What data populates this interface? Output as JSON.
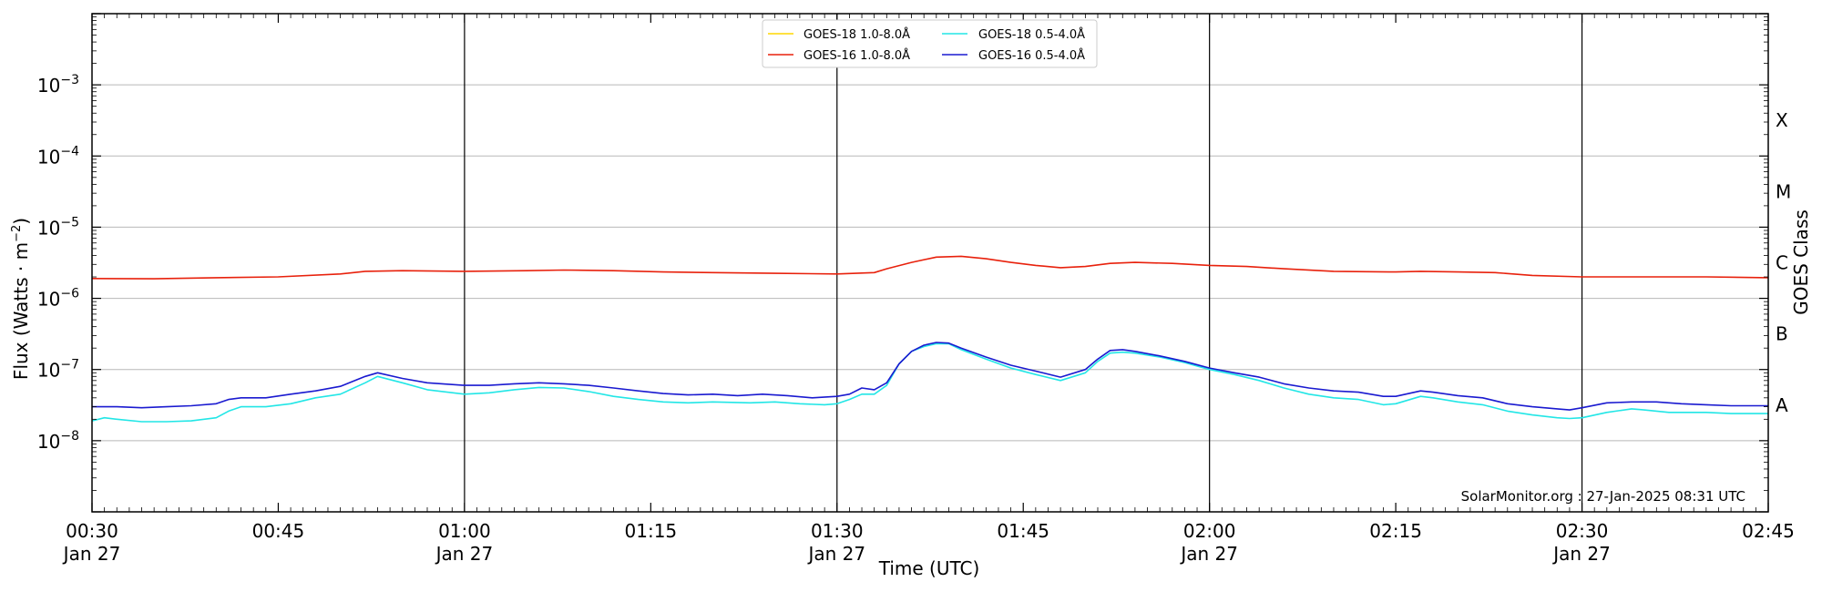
{
  "chart_data": {
    "type": "line",
    "xlabel": "Time (UTC)",
    "ylabel": "Flux (Watts · m",
    "ylabel_exp": "−2",
    "ylabel_close": ")",
    "right_label": "GOES Class",
    "watermark": "SolarMonitor.org : 27-Jan-2025 08:31 UTC",
    "x_range_min": [
      30,
      165
    ],
    "y_log_range": [
      -9,
      -2
    ],
    "grid": "horizontal",
    "legend_position": "top-center",
    "x_ticks": [
      {
        "t": 30,
        "time": "00:30",
        "date": "Jan 27"
      },
      {
        "t": 45,
        "time": "00:45",
        "date": ""
      },
      {
        "t": 60,
        "time": "01:00",
        "date": "Jan 27"
      },
      {
        "t": 75,
        "time": "01:15",
        "date": ""
      },
      {
        "t": 90,
        "time": "01:30",
        "date": "Jan 27"
      },
      {
        "t": 105,
        "time": "01:45",
        "date": ""
      },
      {
        "t": 120,
        "time": "02:00",
        "date": "Jan 27"
      },
      {
        "t": 135,
        "time": "02:15",
        "date": ""
      },
      {
        "t": 150,
        "time": "02:30",
        "date": "Jan 27"
      },
      {
        "t": 165,
        "time": "02:45",
        "date": ""
      }
    ],
    "y_ticks": [
      {
        "exp": -3,
        "base": "10",
        "sup": "−3"
      },
      {
        "exp": -4,
        "base": "10",
        "sup": "−4"
      },
      {
        "exp": -5,
        "base": "10",
        "sup": "−5"
      },
      {
        "exp": -6,
        "base": "10",
        "sup": "−6"
      },
      {
        "exp": -7,
        "base": "10",
        "sup": "−7"
      },
      {
        "exp": -8,
        "base": "10",
        "sup": "−8"
      }
    ],
    "goes_classes": [
      {
        "label": "X",
        "exp": -3.5
      },
      {
        "label": "M",
        "exp": -4.5
      },
      {
        "label": "C",
        "exp": -5.5
      },
      {
        "label": "B",
        "exp": -6.5
      },
      {
        "label": "A",
        "exp": -7.5
      }
    ],
    "vertical_lines": [
      60,
      90,
      120,
      150
    ],
    "series": [
      {
        "name": "GOES-18 1.0-8.0Å",
        "color": "#ffd700",
        "data": []
      },
      {
        "name": "GOES-16 1.0-8.0Å",
        "color": "#e8210c",
        "data": [
          [
            30,
            1.9e-06
          ],
          [
            35,
            1.88e-06
          ],
          [
            40,
            1.95e-06
          ],
          [
            45,
            2e-06
          ],
          [
            50,
            2.2e-06
          ],
          [
            52,
            2.4e-06
          ],
          [
            55,
            2.45e-06
          ],
          [
            60,
            2.4e-06
          ],
          [
            65,
            2.45e-06
          ],
          [
            68,
            2.5e-06
          ],
          [
            72,
            2.45e-06
          ],
          [
            76,
            2.35e-06
          ],
          [
            80,
            2.3e-06
          ],
          [
            85,
            2.25e-06
          ],
          [
            90,
            2.2e-06
          ],
          [
            93,
            2.3e-06
          ],
          [
            94,
            2.6e-06
          ],
          [
            96,
            3.2e-06
          ],
          [
            98,
            3.8e-06
          ],
          [
            100,
            3.9e-06
          ],
          [
            102,
            3.6e-06
          ],
          [
            104,
            3.2e-06
          ],
          [
            106,
            2.9e-06
          ],
          [
            108,
            2.7e-06
          ],
          [
            110,
            2.8e-06
          ],
          [
            112,
            3.1e-06
          ],
          [
            114,
            3.2e-06
          ],
          [
            117,
            3.1e-06
          ],
          [
            120,
            2.9e-06
          ],
          [
            123,
            2.8e-06
          ],
          [
            126,
            2.6e-06
          ],
          [
            130,
            2.4e-06
          ],
          [
            135,
            2.35e-06
          ],
          [
            137,
            2.4e-06
          ],
          [
            140,
            2.35e-06
          ],
          [
            143,
            2.3e-06
          ],
          [
            146,
            2.1e-06
          ],
          [
            150,
            2e-06
          ],
          [
            155,
            2e-06
          ],
          [
            160,
            2e-06
          ],
          [
            165,
            1.95e-06
          ]
        ]
      },
      {
        "name": "GOES-18 0.5-4.0Å",
        "color": "#22e6e6",
        "data": [
          [
            30,
            1.9e-08
          ],
          [
            31,
            2.1e-08
          ],
          [
            32,
            2e-08
          ],
          [
            34,
            1.85e-08
          ],
          [
            36,
            1.85e-08
          ],
          [
            38,
            1.9e-08
          ],
          [
            40,
            2.1e-08
          ],
          [
            41,
            2.6e-08
          ],
          [
            42,
            3e-08
          ],
          [
            44,
            3e-08
          ],
          [
            46,
            3.3e-08
          ],
          [
            48,
            4e-08
          ],
          [
            50,
            4.5e-08
          ],
          [
            52,
            6.5e-08
          ],
          [
            53,
            8e-08
          ],
          [
            55,
            6.5e-08
          ],
          [
            57,
            5.2e-08
          ],
          [
            60,
            4.5e-08
          ],
          [
            62,
            4.7e-08
          ],
          [
            64,
            5.2e-08
          ],
          [
            66,
            5.6e-08
          ],
          [
            68,
            5.5e-08
          ],
          [
            70,
            4.9e-08
          ],
          [
            72,
            4.2e-08
          ],
          [
            74,
            3.8e-08
          ],
          [
            76,
            3.5e-08
          ],
          [
            78,
            3.4e-08
          ],
          [
            80,
            3.5e-08
          ],
          [
            83,
            3.4e-08
          ],
          [
            85,
            3.5e-08
          ],
          [
            87,
            3.3e-08
          ],
          [
            89,
            3.2e-08
          ],
          [
            90,
            3.3e-08
          ],
          [
            91,
            3.8e-08
          ],
          [
            92,
            4.5e-08
          ],
          [
            93,
            4.5e-08
          ],
          [
            94,
            6e-08
          ],
          [
            95,
            1.2e-07
          ],
          [
            96,
            1.8e-07
          ],
          [
            97,
            2.1e-07
          ],
          [
            98,
            2.3e-07
          ],
          [
            99,
            2.3e-07
          ],
          [
            100,
            1.9e-07
          ],
          [
            102,
            1.4e-07
          ],
          [
            104,
            1.05e-07
          ],
          [
            106,
            8.5e-08
          ],
          [
            108,
            7e-08
          ],
          [
            110,
            9e-08
          ],
          [
            111,
            1.3e-07
          ],
          [
            112,
            1.7e-07
          ],
          [
            113,
            1.75e-07
          ],
          [
            114,
            1.7e-07
          ],
          [
            116,
            1.5e-07
          ],
          [
            118,
            1.25e-07
          ],
          [
            120,
            1e-07
          ],
          [
            122,
            8.5e-08
          ],
          [
            124,
            7e-08
          ],
          [
            126,
            5.5e-08
          ],
          [
            128,
            4.5e-08
          ],
          [
            130,
            4e-08
          ],
          [
            132,
            3.8e-08
          ],
          [
            134,
            3.2e-08
          ],
          [
            135,
            3.3e-08
          ],
          [
            137,
            4.2e-08
          ],
          [
            138,
            4e-08
          ],
          [
            140,
            3.5e-08
          ],
          [
            142,
            3.2e-08
          ],
          [
            144,
            2.6e-08
          ],
          [
            146,
            2.3e-08
          ],
          [
            148,
            2.1e-08
          ],
          [
            149,
            2.05e-08
          ],
          [
            150,
            2.1e-08
          ],
          [
            152,
            2.5e-08
          ],
          [
            154,
            2.8e-08
          ],
          [
            155,
            2.7e-08
          ],
          [
            157,
            2.5e-08
          ],
          [
            160,
            2.5e-08
          ],
          [
            162,
            2.4e-08
          ],
          [
            165,
            2.4e-08
          ]
        ]
      },
      {
        "name": "GOES-16 0.5-4.0Å",
        "color": "#1a1ad0",
        "data": [
          [
            30,
            3e-08
          ],
          [
            32,
            3e-08
          ],
          [
            34,
            2.9e-08
          ],
          [
            36,
            3e-08
          ],
          [
            38,
            3.1e-08
          ],
          [
            40,
            3.3e-08
          ],
          [
            41,
            3.8e-08
          ],
          [
            42,
            4e-08
          ],
          [
            44,
            4e-08
          ],
          [
            46,
            4.5e-08
          ],
          [
            48,
            5e-08
          ],
          [
            50,
            5.8e-08
          ],
          [
            52,
            8e-08
          ],
          [
            53,
            9e-08
          ],
          [
            55,
            7.5e-08
          ],
          [
            57,
            6.5e-08
          ],
          [
            60,
            6e-08
          ],
          [
            62,
            6e-08
          ],
          [
            64,
            6.3e-08
          ],
          [
            66,
            6.5e-08
          ],
          [
            68,
            6.3e-08
          ],
          [
            70,
            6e-08
          ],
          [
            72,
            5.5e-08
          ],
          [
            74,
            5e-08
          ],
          [
            76,
            4.6e-08
          ],
          [
            78,
            4.4e-08
          ],
          [
            80,
            4.5e-08
          ],
          [
            82,
            4.3e-08
          ],
          [
            84,
            4.5e-08
          ],
          [
            86,
            4.3e-08
          ],
          [
            88,
            4e-08
          ],
          [
            90,
            4.2e-08
          ],
          [
            91,
            4.5e-08
          ],
          [
            92,
            5.5e-08
          ],
          [
            93,
            5.2e-08
          ],
          [
            94,
            6.5e-08
          ],
          [
            95,
            1.2e-07
          ],
          [
            96,
            1.8e-07
          ],
          [
            97,
            2.2e-07
          ],
          [
            98,
            2.4e-07
          ],
          [
            99,
            2.35e-07
          ],
          [
            100,
            2e-07
          ],
          [
            102,
            1.5e-07
          ],
          [
            104,
            1.15e-07
          ],
          [
            106,
            9.5e-08
          ],
          [
            108,
            7.8e-08
          ],
          [
            110,
            1e-07
          ],
          [
            111,
            1.4e-07
          ],
          [
            112,
            1.85e-07
          ],
          [
            113,
            1.9e-07
          ],
          [
            114,
            1.8e-07
          ],
          [
            116,
            1.55e-07
          ],
          [
            118,
            1.3e-07
          ],
          [
            120,
            1.05e-07
          ],
          [
            122,
            9e-08
          ],
          [
            124,
            7.8e-08
          ],
          [
            126,
            6.3e-08
          ],
          [
            128,
            5.5e-08
          ],
          [
            130,
            5e-08
          ],
          [
            132,
            4.8e-08
          ],
          [
            134,
            4.2e-08
          ],
          [
            135,
            4.2e-08
          ],
          [
            137,
            5e-08
          ],
          [
            138,
            4.8e-08
          ],
          [
            140,
            4.3e-08
          ],
          [
            142,
            4e-08
          ],
          [
            144,
            3.3e-08
          ],
          [
            146,
            3e-08
          ],
          [
            148,
            2.8e-08
          ],
          [
            149,
            2.7e-08
          ],
          [
            150,
            2.9e-08
          ],
          [
            152,
            3.4e-08
          ],
          [
            154,
            3.5e-08
          ],
          [
            156,
            3.5e-08
          ],
          [
            158,
            3.3e-08
          ],
          [
            160,
            3.2e-08
          ],
          [
            162,
            3.1e-08
          ],
          [
            165,
            3.1e-08
          ]
        ]
      }
    ]
  }
}
